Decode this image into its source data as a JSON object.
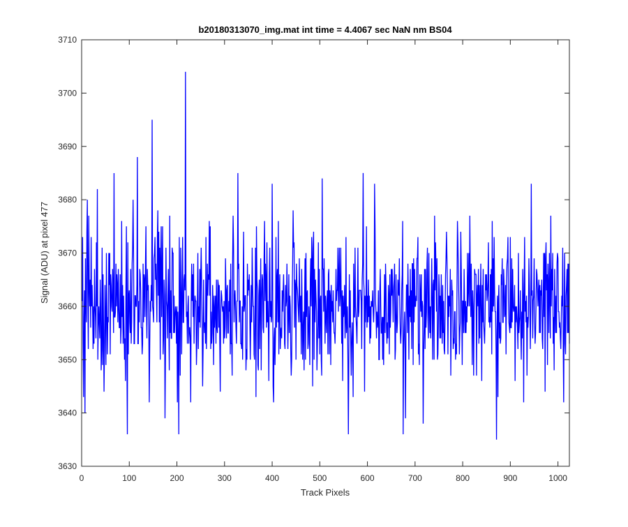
{
  "chart_data": {
    "type": "line",
    "title": "b20180313070_img.mat int time = 4.4067 sec  NaN nm BS04",
    "xlabel": "Track Pixels",
    "ylabel": "Signal (ADU) at pixel 477",
    "xlim": [
      0,
      1024
    ],
    "ylim": [
      3630,
      3710
    ],
    "xticks": [
      0,
      100,
      200,
      300,
      400,
      500,
      600,
      700,
      800,
      900,
      1000
    ],
    "yticks": [
      3630,
      3640,
      3650,
      3660,
      3670,
      3680,
      3690,
      3700,
      3710
    ],
    "grid": false,
    "legend": "none",
    "series": [
      {
        "color": "#0000ff",
        "x_start": 1,
        "x_step": 1,
        "baseline": 3660,
        "noise_range": [
          3642,
          3678
        ],
        "notable_points": [
          {
            "x": 2,
            "y": 3673
          },
          {
            "x": 4,
            "y": 3643
          },
          {
            "x": 7,
            "y": 3640
          },
          {
            "x": 12,
            "y": 3680
          },
          {
            "x": 33,
            "y": 3682
          },
          {
            "x": 68,
            "y": 3685
          },
          {
            "x": 94,
            "y": 3675
          },
          {
            "x": 96,
            "y": 3636
          },
          {
            "x": 108,
            "y": 3680
          },
          {
            "x": 117,
            "y": 3688
          },
          {
            "x": 148,
            "y": 3695
          },
          {
            "x": 175,
            "y": 3639
          },
          {
            "x": 185,
            "y": 3677
          },
          {
            "x": 204,
            "y": 3636
          },
          {
            "x": 218,
            "y": 3704
          },
          {
            "x": 270,
            "y": 3675
          },
          {
            "x": 328,
            "y": 3685
          },
          {
            "x": 366,
            "y": 3643
          },
          {
            "x": 400,
            "y": 3683
          },
          {
            "x": 505,
            "y": 3684
          },
          {
            "x": 560,
            "y": 3636
          },
          {
            "x": 591,
            "y": 3685
          },
          {
            "x": 615,
            "y": 3683
          },
          {
            "x": 675,
            "y": 3636
          },
          {
            "x": 680,
            "y": 3639
          },
          {
            "x": 717,
            "y": 3638
          },
          {
            "x": 815,
            "y": 3677
          },
          {
            "x": 871,
            "y": 3635
          },
          {
            "x": 944,
            "y": 3683
          },
          {
            "x": 1012,
            "y": 3642
          }
        ]
      }
    ]
  }
}
